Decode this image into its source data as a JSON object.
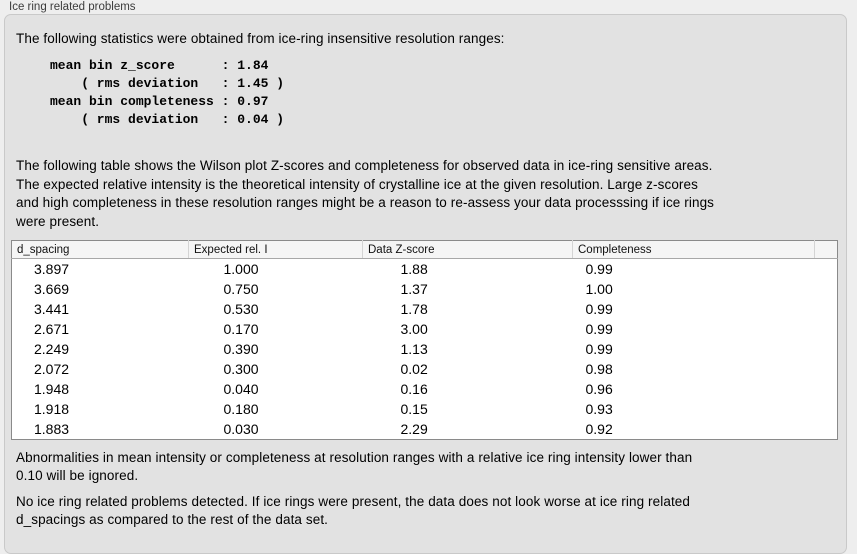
{
  "panel": {
    "title": "Ice ring related problems"
  },
  "stats": {
    "intro": "The following statistics were obtained from ice-ring insensitive resolution ranges:",
    "block": "mean bin z_score      : 1.84\n    ( rms deviation   : 1.45 )\nmean bin completeness : 0.97\n    ( rms deviation   : 0.04 )"
  },
  "table_description": "The following table shows the Wilson plot Z-scores and completeness for observed data in ice-ring sensitive areas.\nThe expected relative intensity is the theoretical intensity of crystalline ice at the given resolution. Large z-scores\nand high completeness in these resolution ranges might be a reason to re-assess your data processsing if ice rings\nwere present.",
  "table": {
    "columns": [
      "d_spacing",
      "Expected rel. I",
      "Data Z-score",
      "Completeness"
    ],
    "rows": [
      [
        "3.897",
        "1.000",
        "1.88",
        "0.99"
      ],
      [
        "3.669",
        "0.750",
        "1.37",
        "1.00"
      ],
      [
        "3.441",
        "0.530",
        "1.78",
        "0.99"
      ],
      [
        "2.671",
        "0.170",
        "3.00",
        "0.99"
      ],
      [
        "2.249",
        "0.390",
        "1.13",
        "0.99"
      ],
      [
        "2.072",
        "0.300",
        "0.02",
        "0.98"
      ],
      [
        "1.948",
        "0.040",
        "0.16",
        "0.96"
      ],
      [
        "1.918",
        "0.180",
        "0.15",
        "0.93"
      ],
      [
        "1.883",
        "0.030",
        "2.29",
        "0.92"
      ]
    ]
  },
  "notes": {
    "ignored": "Abnormalities in mean intensity or completeness at resolution ranges with a relative ice ring intensity lower than\n0.10 will be ignored.",
    "conclusion": "No ice ring related problems detected. If ice rings were present, the data does not look worse at ice ring related\nd_spacings as compared to the rest of the data set."
  },
  "colors": {
    "page_bg": "#eeeeee",
    "panel_bg": "#e2e2e2",
    "panel_border": "#c9c9c9",
    "table_border": "#8a8a8a",
    "table_header_bg": "#f5f5f5"
  }
}
